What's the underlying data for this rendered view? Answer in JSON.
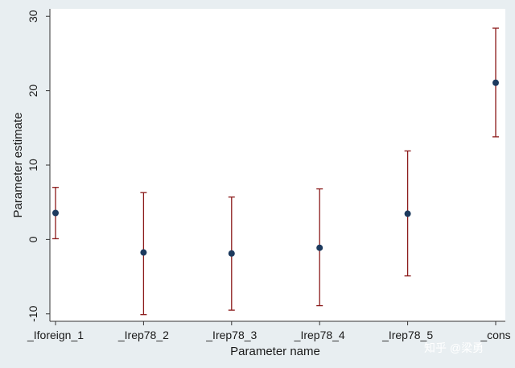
{
  "chart_data": {
    "type": "scatter",
    "title": "",
    "xlabel": "Parameter name",
    "ylabel": "Parameter estimate",
    "categories": [
      "_Iforeign_1",
      "_Irep78_2",
      "_Irep78_3",
      "_Irep78_4",
      "_Irep78_5",
      "_cons"
    ],
    "series": [
      {
        "values": [
          3.56,
          -1.75,
          -1.88,
          -1.12,
          3.46,
          21.07
        ],
        "lower": [
          0.1,
          -10.1,
          -9.5,
          -8.9,
          -4.9,
          13.8
        ],
        "upper": [
          7.0,
          6.3,
          5.7,
          6.8,
          11.9,
          28.4
        ]
      }
    ],
    "ylim": [
      -11,
      31
    ],
    "yticks": [
      -10,
      0,
      10,
      20,
      30
    ],
    "grid": false,
    "legend": "none",
    "colors": {
      "background": "#e8eef1",
      "plot_background": "#ffffff",
      "point": "#1c3a5e",
      "interval": "#8b1a1a"
    }
  },
  "watermark": "知乎 @梁勇"
}
